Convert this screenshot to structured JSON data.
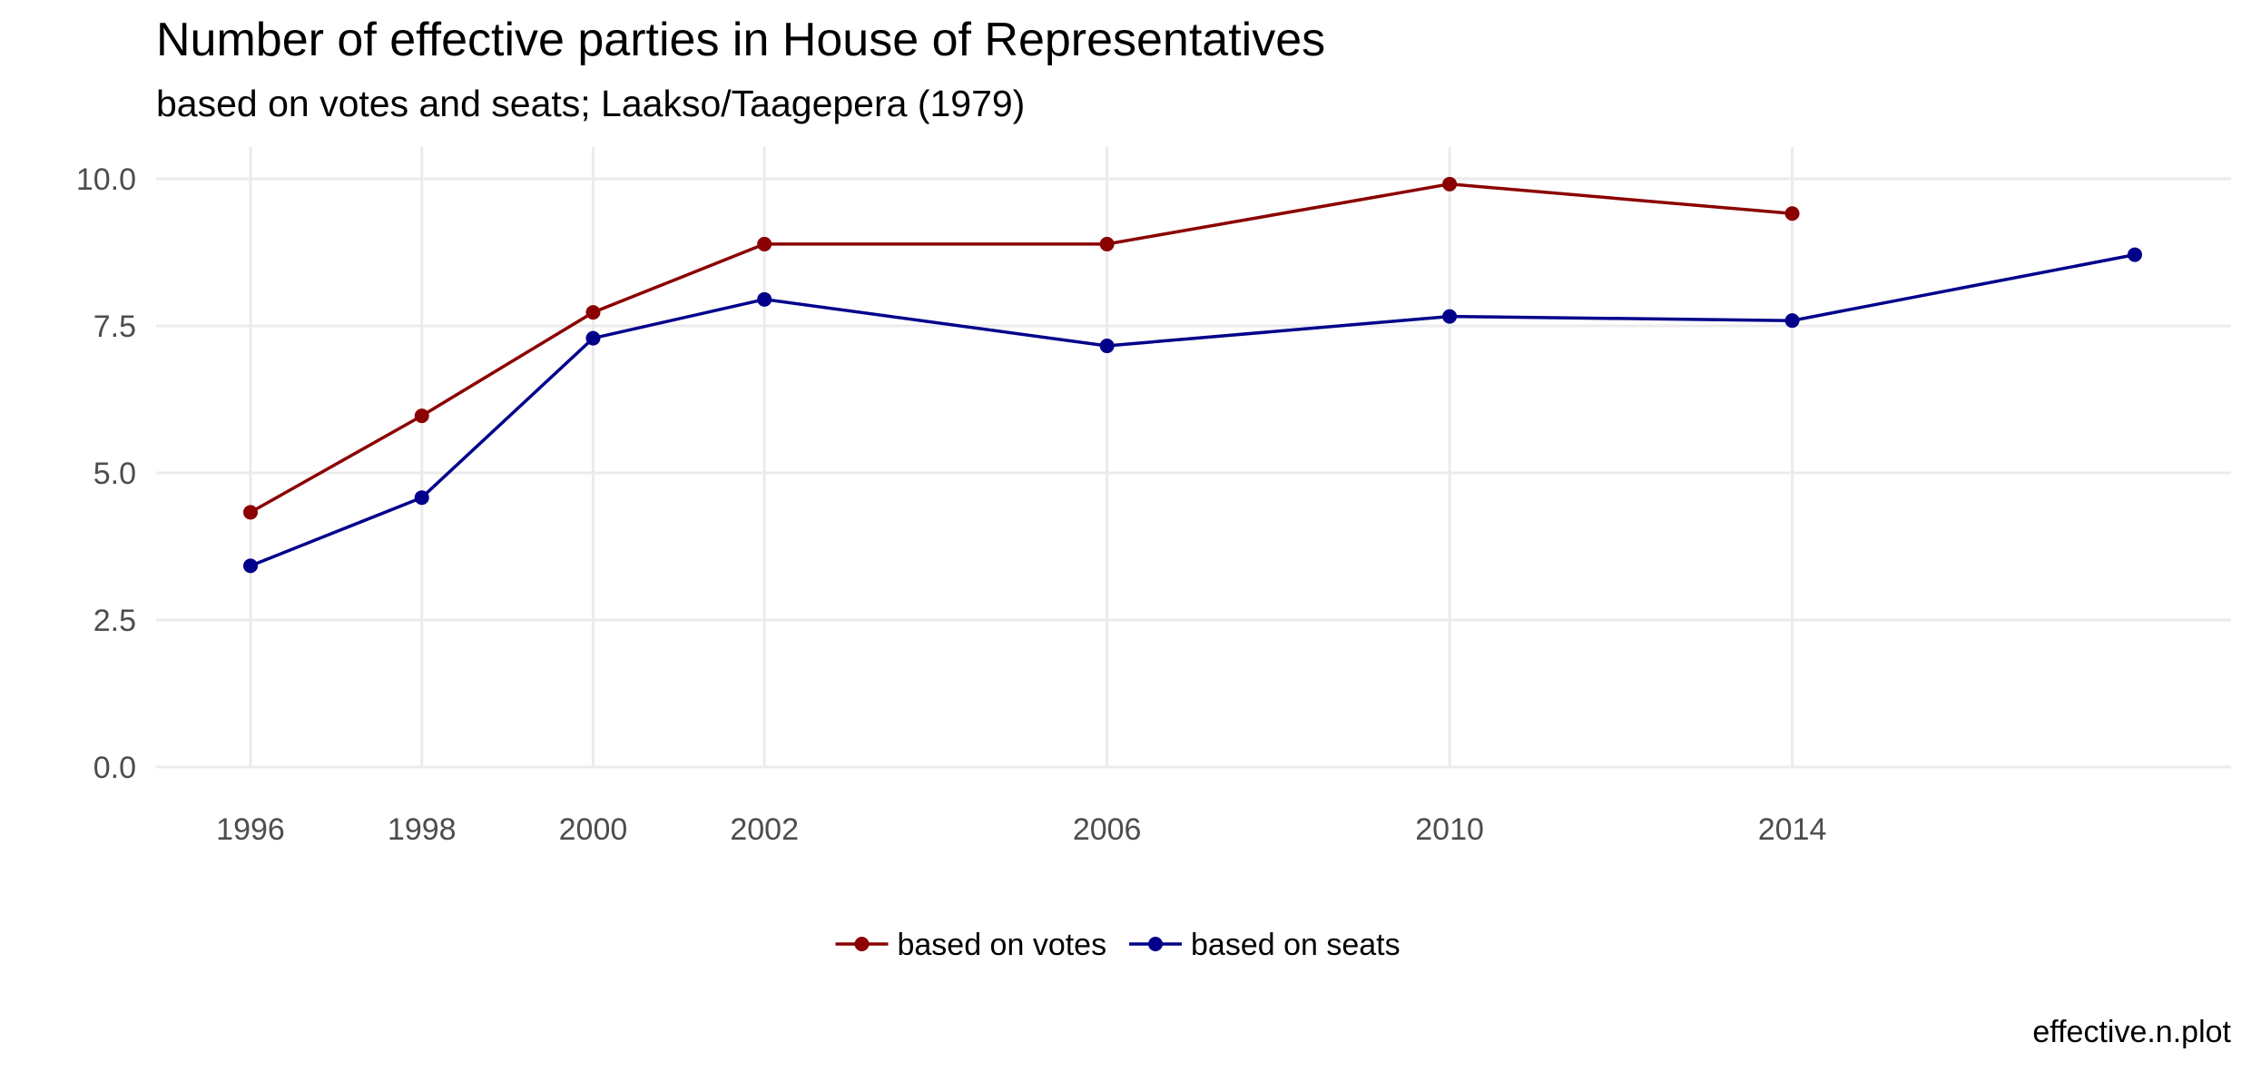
{
  "chart_data": {
    "type": "line",
    "title": "Number of effective parties in House of Representatives",
    "subtitle": "based on votes and seats; Laakso/Taagepera (1979)",
    "caption": "effective.n.plot",
    "xlabel": "",
    "ylabel": "",
    "xlim": [
      1996,
      2018
    ],
    "ylim": [
      0,
      10
    ],
    "x_ticks": [
      1996,
      1998,
      2000,
      2002,
      2006,
      2010,
      2014
    ],
    "x_tick_labels": [
      "1996",
      "1998",
      "2000",
      "2002",
      "2006",
      "2010",
      "2014"
    ],
    "y_ticks": [
      0,
      2.5,
      5,
      7.5,
      10
    ],
    "y_tick_labels": [
      "0.0",
      "2.5",
      "5.0",
      "7.5",
      "10.0"
    ],
    "grid": true,
    "legend_position": "bottom",
    "series": [
      {
        "name": "based on votes",
        "color": "#8b0000",
        "x": [
          1996,
          1998,
          2000,
          2002,
          2006,
          2010,
          2014
        ],
        "values": [
          4.33,
          5.97,
          7.73,
          8.89,
          8.89,
          9.91,
          9.41
        ]
      },
      {
        "name": "based on seats",
        "color": "#00008b",
        "x": [
          1996,
          1998,
          2000,
          2002,
          2006,
          2010,
          2014,
          2018
        ],
        "values": [
          3.42,
          4.58,
          7.29,
          7.95,
          7.16,
          7.66,
          7.59,
          8.71
        ]
      }
    ]
  }
}
